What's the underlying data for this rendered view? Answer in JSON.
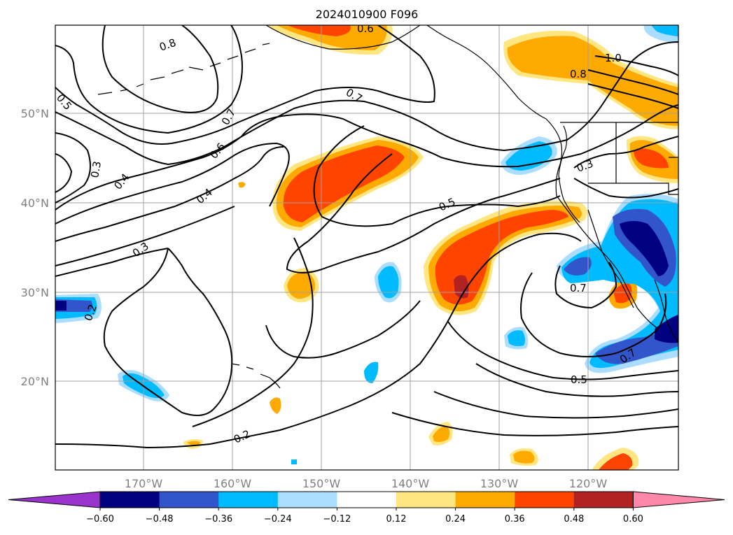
{
  "title": "2024010900 F096",
  "map": {
    "lat_labels": [
      "50°N",
      "40°N",
      "30°N",
      "20°N"
    ],
    "lon_labels": [
      "170°W",
      "160°W",
      "150°W",
      "140°W",
      "130°W",
      "120°W"
    ],
    "contour_labels": [
      "0.8",
      "0.7",
      "0.7",
      "0.6",
      "0.5",
      "0.4",
      "0.3",
      "0.4",
      "0.3",
      "0.2",
      "0.2",
      "0.5",
      "1.0",
      "0.8",
      "0.3",
      "0.6",
      "0.5",
      "0.7",
      "0.7"
    ]
  },
  "colorbar": {
    "tick_labels": [
      "−0.60",
      "−0.48",
      "−0.36",
      "−0.24",
      "−0.12",
      "0.12",
      "0.24",
      "0.36",
      "0.48",
      "0.60"
    ],
    "colors": [
      "#9933cc",
      "#000080",
      "#3355cc",
      "#00bbff",
      "#aaddff",
      "#ffffff",
      "#ffe680",
      "#ffaa00",
      "#ff4400",
      "#b22222",
      "#ff88aa"
    ]
  }
}
